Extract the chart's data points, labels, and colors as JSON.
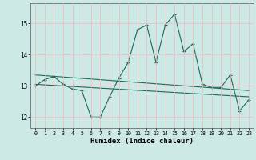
{
  "x": [
    0,
    1,
    2,
    3,
    4,
    5,
    6,
    7,
    8,
    9,
    10,
    11,
    12,
    13,
    14,
    15,
    16,
    17,
    18,
    19,
    20,
    21,
    22,
    23
  ],
  "line1": [
    13.0,
    13.2,
    13.3,
    13.05,
    12.9,
    12.85,
    12.0,
    12.0,
    12.65,
    13.25,
    13.75,
    14.8,
    14.95,
    13.75,
    14.95,
    15.3,
    14.1,
    14.35,
    13.05,
    12.95,
    12.95,
    13.35,
    12.2,
    12.55
  ],
  "line2_x": [
    0,
    23
  ],
  "line2_y": [
    13.35,
    12.85
  ],
  "line3_x": [
    0,
    23
  ],
  "line3_y": [
    13.05,
    12.65
  ],
  "xlim": [
    -0.5,
    23.5
  ],
  "ylim": [
    11.65,
    15.65
  ],
  "yticks": [
    12,
    13,
    14,
    15
  ],
  "xticks": [
    0,
    1,
    2,
    3,
    4,
    5,
    6,
    7,
    8,
    9,
    10,
    11,
    12,
    13,
    14,
    15,
    16,
    17,
    18,
    19,
    20,
    21,
    22,
    23
  ],
  "xlabel": "Humidex (Indice chaleur)",
  "line_color": "#1a6b5a",
  "bg_color": "#cce9e5",
  "grid_color": "#f5b8b8",
  "text_color": "#000000"
}
